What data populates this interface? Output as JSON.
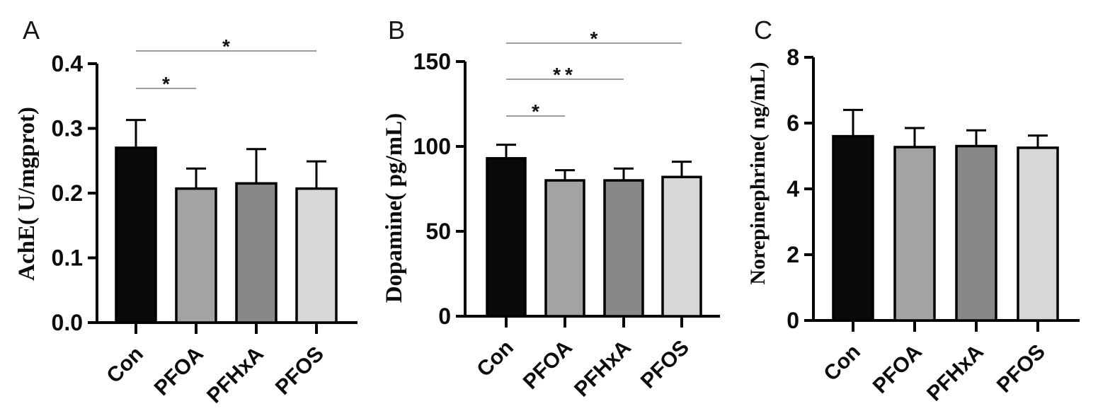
{
  "styles": {
    "background": "#ffffff",
    "axis_color": "#000000",
    "sig_line_color": "#7d7d7d",
    "bar_border_color": "#000000"
  },
  "chart_data": [
    {
      "type": "bar",
      "panel_label": "A",
      "title": "",
      "xlabel": "",
      "ylabel": "AchE( U/mgprot)",
      "categories": [
        "Con",
        "PFOA",
        "PFHxA",
        "PFOS"
      ],
      "values": [
        0.27,
        0.207,
        0.215,
        0.207
      ],
      "errors_plus": [
        0.043,
        0.031,
        0.053,
        0.042
      ],
      "ylim": [
        0,
        0.4
      ],
      "yticks": [
        0,
        0.1,
        0.2,
        0.3,
        0.4
      ],
      "ytick_labels": [
        "0.0",
        "0.1",
        "0.2",
        "0.3",
        "0.4"
      ],
      "bar_colors": [
        "#0a0a0a",
        "#a3a3a3",
        "#888888",
        "#d7d7d7"
      ],
      "grid": false,
      "legend": null,
      "significance": [
        {
          "between": [
            "Con",
            "PFOA"
          ],
          "label": "*"
        },
        {
          "between": [
            "Con",
            "PFOS"
          ],
          "label": "*"
        }
      ]
    },
    {
      "type": "bar",
      "panel_label": "B",
      "title": "",
      "xlabel": "",
      "ylabel": "Dopamine( pg/mL)",
      "categories": [
        "Con",
        "PFOA",
        "PFHxA",
        "PFOS"
      ],
      "values": [
        93,
        80,
        80,
        82
      ],
      "errors_plus": [
        8,
        6,
        7,
        9
      ],
      "ylim": [
        0,
        150
      ],
      "yticks": [
        0,
        50,
        100,
        150
      ],
      "ytick_labels": [
        "0",
        "50",
        "100",
        "150"
      ],
      "bar_colors": [
        "#0a0a0a",
        "#a3a3a3",
        "#888888",
        "#d7d7d7"
      ],
      "grid": false,
      "legend": null,
      "significance": [
        {
          "between": [
            "Con",
            "PFOA"
          ],
          "label": "*"
        },
        {
          "between": [
            "Con",
            "PFHxA"
          ],
          "label": "**"
        },
        {
          "between": [
            "Con",
            "PFOS"
          ],
          "label": "*"
        }
      ]
    },
    {
      "type": "bar",
      "panel_label": "C",
      "title": "",
      "xlabel": "",
      "ylabel": "Norepinephrine( ng/mL)",
      "categories": [
        "Con",
        "PFOA",
        "PFHxA",
        "PFOS"
      ],
      "values": [
        5.6,
        5.27,
        5.3,
        5.25
      ],
      "errors_plus": [
        0.8,
        0.58,
        0.48,
        0.37
      ],
      "ylim": [
        0,
        8
      ],
      "yticks": [
        0,
        2,
        4,
        6,
        8
      ],
      "ytick_labels": [
        "0",
        "2",
        "4",
        "6",
        "8"
      ],
      "bar_colors": [
        "#0a0a0a",
        "#a3a3a3",
        "#888888",
        "#d7d7d7"
      ],
      "grid": false,
      "legend": null,
      "significance": []
    }
  ]
}
